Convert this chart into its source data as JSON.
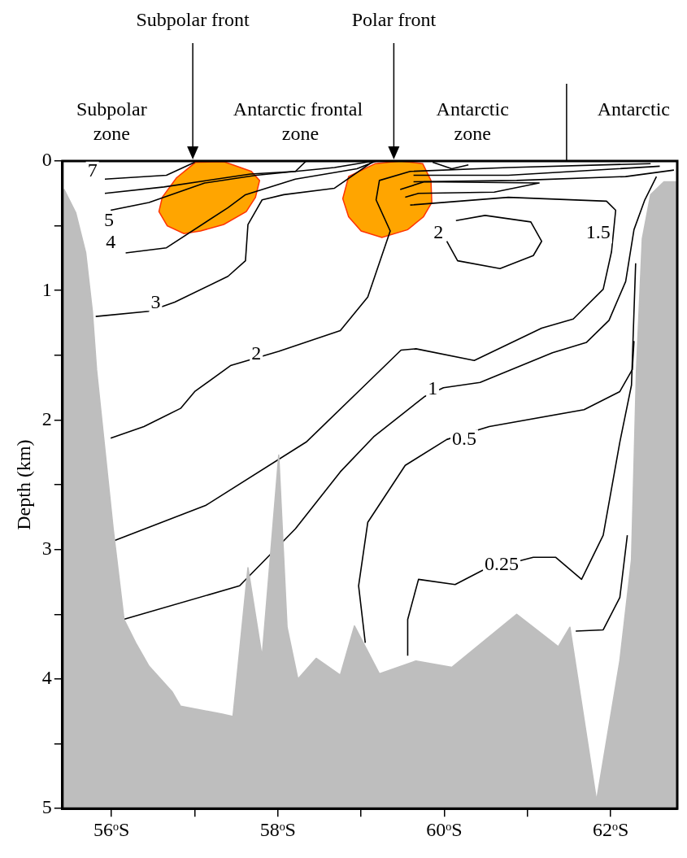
{
  "chart_data": {
    "type": "line",
    "ylabel": "Depth (km)",
    "xlim": [
      55.41,
      62.8
    ],
    "ylim": [
      5,
      0
    ],
    "xticks": [
      {
        "value": 56,
        "label": "56ᵒS"
      },
      {
        "value": 57,
        "label": null
      },
      {
        "value": 58,
        "label": "58ᵒS"
      },
      {
        "value": 59,
        "label": null
      },
      {
        "value": 60,
        "label": "60ᵒS"
      },
      {
        "value": 61,
        "label": null
      },
      {
        "value": 62,
        "label": "62ᵒS"
      }
    ],
    "yticks": [
      0,
      {
        "value": 0.5,
        "label": null
      },
      1,
      {
        "value": 1.5,
        "label": null
      },
      2,
      {
        "value": 2.5,
        "label": null
      },
      3,
      {
        "value": 3.5,
        "label": null
      },
      4,
      {
        "value": 4.5,
        "label": null
      },
      5
    ],
    "grid": false,
    "legend": false,
    "marker": "none",
    "line_style": "solid",
    "series": [
      {
        "type": "area",
        "color": "#bebebe",
        "x": [
          55.43,
          55.43,
          55.57,
          55.69,
          55.77,
          55.82,
          56.02,
          56.15,
          56.29,
          56.45,
          56.73,
          56.83,
          57.33,
          57.46,
          57.64,
          57.81,
          58.01,
          58.11,
          58.24,
          58.46,
          58.75,
          58.92,
          59.22,
          59.66,
          60.09,
          60.87,
          61.37,
          61.51,
          61.83,
          62.11,
          62.25,
          62.31,
          62.38,
          62.48,
          62.64,
          62.8,
          62.8
        ],
        "values": [
          5,
          0.22,
          0.4,
          0.71,
          1.16,
          1.61,
          2.84,
          3.54,
          3.72,
          3.9,
          4.1,
          4.21,
          4.27,
          4.29,
          3.14,
          3.83,
          2.27,
          3.6,
          4.0,
          3.84,
          3.97,
          3.59,
          3.96,
          3.86,
          3.91,
          3.5,
          3.75,
          3.6,
          4.94,
          3.86,
          3.08,
          1.61,
          0.6,
          0.26,
          0.16,
          0.16,
          5
        ]
      },
      {
        "type": "line",
        "color": "#000000",
        "x": [
          55.92,
          56.66,
          57.0
        ],
        "values": [
          0.14,
          0.11,
          0.01
        ]
      },
      {
        "type": "line",
        "color": "#000000",
        "x": [
          55.92,
          56.63,
          57.67,
          58.21,
          58.34
        ],
        "values": [
          0.25,
          0.2,
          0.1,
          0.08,
          0.0
        ]
      },
      {
        "type": "line",
        "color": "#000000",
        "x": [
          55.99,
          56.45,
          57.12,
          57.74,
          58.68,
          59.15
        ],
        "values": [
          0.38,
          0.32,
          0.17,
          0.11,
          0.05,
          0.0
        ]
      },
      {
        "type": "line",
        "color": "#000000",
        "x": [
          56.17,
          56.66,
          57.4,
          57.61,
          58.21,
          58.95,
          59.18
        ],
        "values": [
          0.71,
          0.67,
          0.36,
          0.26,
          0.14,
          0.06,
          0.0
        ]
      },
      {
        "type": "line",
        "color": "#000000",
        "x": [
          55.81,
          56.45,
          56.76,
          57.4,
          57.61,
          57.64,
          57.81,
          58.07,
          58.68,
          59.15
        ],
        "values": [
          1.2,
          1.16,
          1.09,
          0.89,
          0.77,
          0.49,
          0.3,
          0.26,
          0.21,
          0.0
        ]
      },
      {
        "type": "line",
        "color": "#000000",
        "x": [
          55.99,
          56.39,
          56.83,
          57.0,
          57.43,
          58.01,
          58.75,
          59.08,
          59.35,
          59.18,
          59.22,
          59.59,
          60.77,
          62.48
        ],
        "values": [
          2.14,
          2.05,
          1.91,
          1.78,
          1.58,
          1.47,
          1.31,
          1.05,
          0.54,
          0.3,
          0.15,
          0.08,
          0.05,
          0.02
        ]
      },
      {
        "type": "line",
        "color": "#000000",
        "x": [
          60.03,
          60.16,
          60.67,
          61.07,
          61.17,
          61.04,
          60.49,
          60.14
        ],
        "values": [
          0.62,
          0.77,
          0.83,
          0.73,
          0.62,
          0.47,
          0.42,
          0.46
        ]
      },
      {
        "type": "line",
        "color": "#000000",
        "x": [
          56.04,
          57.13,
          58.34,
          59.08,
          59.48,
          59.66,
          60.36,
          61.17,
          61.55,
          61.91,
          62.01,
          62.06,
          61.95,
          60.77,
          59.59
        ],
        "values": [
          2.93,
          2.66,
          2.17,
          1.71,
          1.46,
          1.45,
          1.54,
          1.29,
          1.22,
          0.99,
          0.7,
          0.38,
          0.31,
          0.28,
          0.34
        ]
      },
      {
        "type": "line",
        "color": "#000000",
        "x": [
          56.14,
          57.54,
          58.21,
          58.75,
          59.15,
          59.76,
          59.99,
          60.43,
          61.3,
          61.71,
          61.98,
          62.18,
          62.28,
          62.41,
          62.55
        ],
        "values": [
          3.54,
          3.28,
          2.84,
          2.4,
          2.13,
          1.82,
          1.75,
          1.71,
          1.48,
          1.4,
          1.23,
          0.93,
          0.53,
          0.3,
          0.12
        ]
      },
      {
        "type": "line",
        "color": "#000000",
        "x": [
          59.05,
          58.97,
          59.08,
          59.53,
          60.03,
          60.54,
          61.68,
          62.11,
          62.26,
          62.28
        ],
        "values": [
          3.72,
          3.28,
          2.79,
          2.35,
          2.15,
          2.05,
          1.92,
          1.78,
          1.61,
          1.39
        ]
      },
      {
        "type": "line",
        "color": "#000000",
        "x": [
          59.56,
          59.56,
          59.69,
          60.13,
          60.46,
          61.07,
          61.34,
          61.65,
          61.91,
          62.11,
          62.25,
          62.3
        ],
        "values": [
          3.82,
          3.54,
          3.23,
          3.27,
          3.16,
          3.06,
          3.06,
          3.23,
          2.89,
          2.17,
          1.73,
          0.79
        ]
      },
      {
        "type": "line",
        "color": "#000000",
        "x": [
          61.58,
          61.91,
          62.11,
          62.2
        ],
        "values": [
          3.63,
          3.62,
          3.37,
          2.89
        ]
      },
      {
        "type": "line",
        "color": "#000000",
        "x": [
          59.86,
          60.09,
          60.29
        ],
        "values": [
          0.01,
          0.06,
          0.03
        ]
      },
      {
        "type": "line",
        "color": "#000000",
        "x": [
          59.63,
          60.77,
          62.59
        ],
        "values": [
          0.11,
          0.11,
          0.04
        ]
      },
      {
        "type": "line",
        "color": "#000000",
        "x": [
          59.63,
          60.87,
          62.18,
          62.76
        ],
        "values": [
          0.16,
          0.15,
          0.12,
          0.07
        ]
      },
      {
        "type": "line",
        "color": "#000000",
        "x": [
          59.47,
          59.76,
          61.14,
          60.6,
          59.69,
          59.53
        ],
        "values": [
          0.22,
          0.16,
          0.17,
          0.24,
          0.25,
          0.28
        ]
      }
    ],
    "annotations": [
      {
        "text": "7",
        "x": 55.77,
        "y": 0.08
      },
      {
        "text": "5",
        "x": 55.97,
        "y": 0.46
      },
      {
        "text": "4",
        "x": 55.99,
        "y": 0.63
      },
      {
        "text": "3",
        "x": 56.53,
        "y": 1.1
      },
      {
        "text": "2",
        "x": 57.74,
        "y": 1.49
      },
      {
        "text": "2",
        "x": 59.93,
        "y": 0.56
      },
      {
        "text": "1.5",
        "x": 61.85,
        "y": 0.56
      },
      {
        "text": "1",
        "x": 59.86,
        "y": 1.76
      },
      {
        "text": "0.5",
        "x": 60.24,
        "y": 2.15
      },
      {
        "text": "0.25",
        "x": 60.69,
        "y": 3.12
      },
      "Subpolar front",
      "Polar front",
      "Subpolar\nzone",
      "Antarctic frontal\n zone",
      "Antarctic\nzone",
      "Antarctic"
    ]
  }
}
